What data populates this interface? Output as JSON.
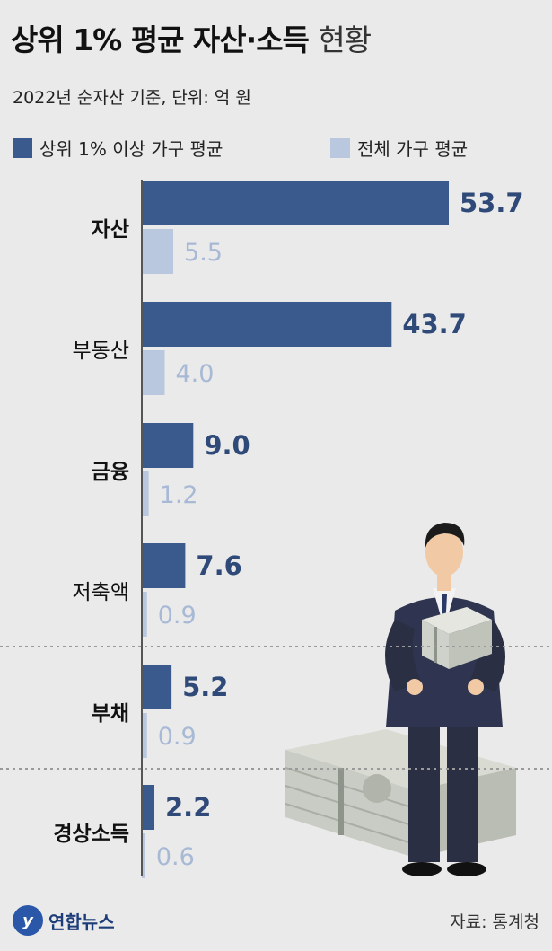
{
  "header": {
    "title_main": "상위 1% 평균 자산·소득",
    "title_suffix": "현황",
    "subtitle": "2022년 순자산 기준, 단위: 억 원"
  },
  "colors": {
    "top1": "#3a5a8e",
    "all": "#b9c7df",
    "top1_label": "#2f4a78",
    "all_label": "#a8b9d6"
  },
  "chart_data": {
    "type": "bar",
    "orientation": "horizontal",
    "categories": [
      "자산",
      "부동산",
      "금융",
      "저축액",
      "부채",
      "경상소득"
    ],
    "series": [
      {
        "name": "상위 1% 이상 가구 평균",
        "values": [
          53.7,
          43.7,
          9.0,
          7.6,
          5.2,
          2.2
        ]
      },
      {
        "name": "전체 가구 평균",
        "values": [
          5.5,
          4.0,
          1.2,
          0.9,
          0.9,
          0.6
        ]
      }
    ],
    "value_labels": {
      "top1": [
        "53.7",
        "43.7",
        "9.0",
        "7.6",
        "5.2",
        "2.2"
      ],
      "all": [
        "5.5",
        "4.0",
        "1.2",
        "0.9",
        "0.9",
        "0.6"
      ]
    },
    "category_bold": [
      true,
      false,
      true,
      false,
      true,
      true
    ],
    "xlim": [
      0,
      53.7
    ],
    "legend_position": "top"
  },
  "footer": {
    "logo_text": "연합뉴스",
    "source": "자료: 통계청"
  }
}
